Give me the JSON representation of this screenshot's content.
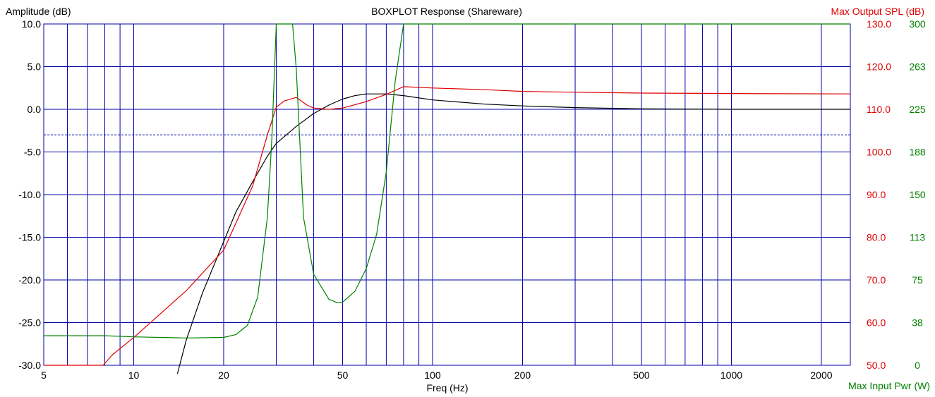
{
  "chart_data": {
    "type": "line",
    "title": "BOXPLOT  Response (Shareware)",
    "xlabel": "Freq (Hz)",
    "ylabel_left": "Amplitude (dB)",
    "ylabel_right": "Max Output SPL (dB)",
    "ylabel_right2": "Max Input Pwr (W)",
    "x_scale": "log",
    "xlim": [
      5,
      2500
    ],
    "ylim_left": [
      -30,
      10
    ],
    "ylim_right": [
      50,
      130
    ],
    "ylim_right2": [
      0,
      300
    ],
    "grid": true,
    "reference_line": -3,
    "x_ticks": [
      {
        "value": 5,
        "label": "5"
      },
      {
        "value": 10,
        "label": "10"
      },
      {
        "value": 20,
        "label": "20"
      },
      {
        "value": 50,
        "label": "50"
      },
      {
        "value": 100,
        "label": "100"
      },
      {
        "value": 200,
        "label": "200"
      },
      {
        "value": 500,
        "label": "500"
      },
      {
        "value": 1000,
        "label": "1000"
      },
      {
        "value": 2000,
        "label": "2000"
      }
    ],
    "x_gridlines": [
      6,
      7,
      8,
      9,
      10,
      20,
      30,
      40,
      50,
      60,
      70,
      80,
      90,
      100,
      200,
      300,
      400,
      500,
      600,
      700,
      800,
      900,
      1000,
      2000
    ],
    "y_ticks_left": [
      "10.0",
      "5.0",
      "0.0",
      "-5.0",
      "-10.0",
      "-15.0",
      "-20.0",
      "-25.0",
      "-30.0"
    ],
    "y_ticks_right": [
      "130.0",
      "120.0",
      "110.0",
      "100.0",
      "90.0",
      "80.0",
      "70.0",
      "60.0",
      "50.0"
    ],
    "y_ticks_right2": [
      "300",
      "263",
      "225",
      "188",
      "150",
      "113",
      "75",
      "38",
      "0"
    ],
    "colors": {
      "grid": "#0000aa",
      "amplitude": "#000000",
      "spl": "#e00000",
      "power": "#008000"
    },
    "series": [
      {
        "key": "amplitude",
        "axis": "left",
        "color": "#000000",
        "points": [
          [
            14,
            -31
          ],
          [
            15,
            -27
          ],
          [
            17,
            -21.5
          ],
          [
            20,
            -15.5
          ],
          [
            22,
            -12
          ],
          [
            25,
            -8.5
          ],
          [
            28,
            -5.5
          ],
          [
            30,
            -4
          ],
          [
            35,
            -2
          ],
          [
            40,
            -0.5
          ],
          [
            45,
            0.5
          ],
          [
            50,
            1.2
          ],
          [
            55,
            1.6
          ],
          [
            60,
            1.8
          ],
          [
            70,
            1.8
          ],
          [
            80,
            1.6
          ],
          [
            100,
            1.1
          ],
          [
            150,
            0.6
          ],
          [
            200,
            0.4
          ],
          [
            300,
            0.2
          ],
          [
            500,
            0.05
          ],
          [
            1000,
            0
          ],
          [
            2500,
            0
          ]
        ]
      },
      {
        "key": "spl",
        "axis": "right",
        "color": "#e00000",
        "points": [
          [
            5,
            50
          ],
          [
            7.9,
            50
          ],
          [
            8.5,
            52.5
          ],
          [
            10,
            56.5
          ],
          [
            15,
            67.5
          ],
          [
            20,
            77
          ],
          [
            25,
            92
          ],
          [
            28,
            104
          ],
          [
            30,
            110.5
          ],
          [
            32,
            112
          ],
          [
            35,
            112.8
          ],
          [
            38,
            111
          ],
          [
            40,
            110.3
          ],
          [
            45,
            110
          ],
          [
            50,
            110.3
          ],
          [
            60,
            111.8
          ],
          [
            70,
            113.5
          ],
          [
            80,
            115.3
          ],
          [
            100,
            115
          ],
          [
            150,
            114.6
          ],
          [
            200,
            114.2
          ],
          [
            300,
            114
          ],
          [
            500,
            113.8
          ],
          [
            1000,
            113.7
          ],
          [
            2500,
            113.6
          ]
        ]
      },
      {
        "key": "power",
        "axis": "right2",
        "color": "#008000",
        "points": [
          [
            5,
            26
          ],
          [
            8,
            26
          ],
          [
            10,
            25
          ],
          [
            15,
            24
          ],
          [
            20,
            24.5
          ],
          [
            22,
            27
          ],
          [
            24,
            35
          ],
          [
            26,
            60
          ],
          [
            28,
            130
          ],
          [
            29,
            200
          ],
          [
            30,
            300
          ],
          [
            34,
            300
          ],
          [
            35,
            260
          ],
          [
            37,
            130
          ],
          [
            40,
            80
          ],
          [
            45,
            58
          ],
          [
            48,
            55
          ],
          [
            50,
            55.5
          ],
          [
            55,
            65
          ],
          [
            60,
            85
          ],
          [
            65,
            115
          ],
          [
            70,
            170
          ],
          [
            75,
            250
          ],
          [
            80,
            300
          ],
          [
            2500,
            300
          ]
        ]
      }
    ]
  }
}
